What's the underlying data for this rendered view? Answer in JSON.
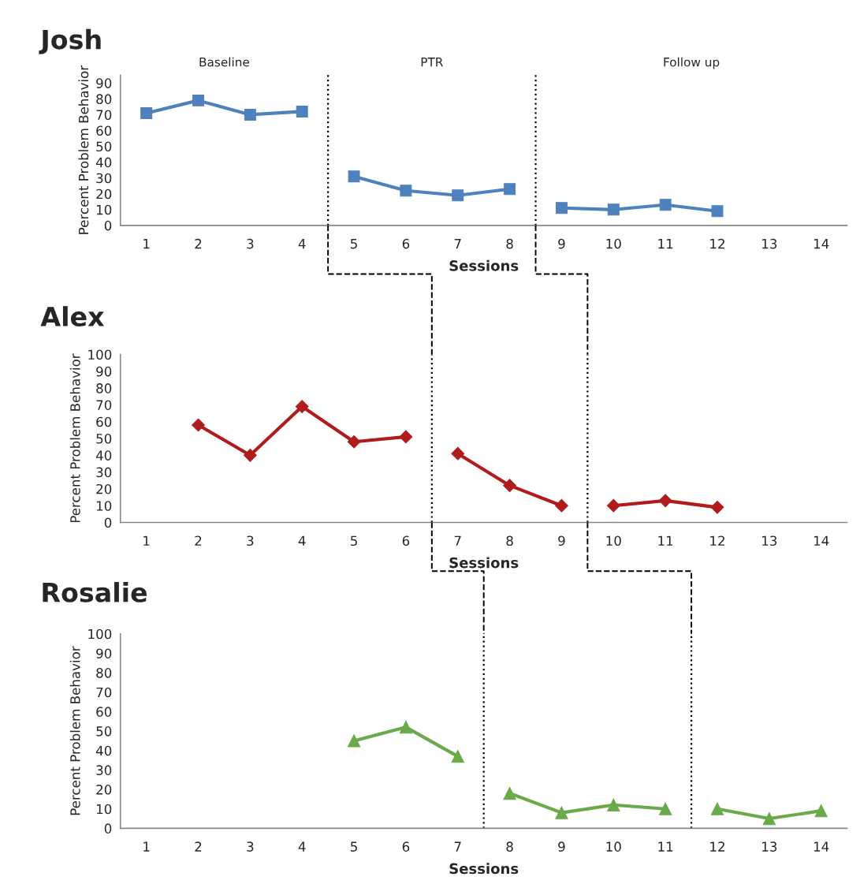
{
  "chart_data": [
    {
      "type": "line",
      "title": "Josh",
      "xlabel": "Sessions",
      "ylabel": "Percent Problem Behavior",
      "marker": "square",
      "grid": false,
      "legend": false,
      "xlim": [
        0.5,
        14.5
      ],
      "xticks": [
        1,
        2,
        3,
        4,
        5,
        6,
        7,
        8,
        9,
        10,
        11,
        12,
        13,
        14
      ],
      "ylim": [
        0,
        95
      ],
      "yticks": [
        0,
        10,
        20,
        30,
        40,
        50,
        60,
        70,
        80,
        90
      ],
      "series": [
        {
          "color": "#4f81bd",
          "x": [
            1,
            2,
            3,
            4
          ],
          "values": [
            71,
            79,
            70,
            72
          ]
        },
        {
          "color": "#4f81bd",
          "x": [
            5,
            6,
            7,
            8
          ],
          "values": [
            31,
            22,
            19,
            23
          ]
        },
        {
          "color": "#4f81bd",
          "x": [
            9,
            10,
            11,
            12
          ],
          "values": [
            11,
            10,
            13,
            9
          ]
        }
      ],
      "ref_lines": [
        {
          "axis": "x",
          "value": 4.5,
          "line_style": "dotted",
          "color": "#000000"
        },
        {
          "axis": "x",
          "value": 8.5,
          "line_style": "dotted",
          "color": "#000000"
        }
      ],
      "annotations": [
        "Baseline",
        "PTR",
        "Follow up"
      ]
    },
    {
      "type": "line",
      "title": "Alex",
      "xlabel": "Sessions",
      "ylabel": "Percent Problem Behavior",
      "marker": "diamond",
      "grid": false,
      "legend": false,
      "xlim": [
        0.5,
        14.5
      ],
      "xticks": [
        1,
        2,
        3,
        4,
        5,
        6,
        7,
        8,
        9,
        10,
        11,
        12,
        13,
        14
      ],
      "ylim": [
        0,
        100
      ],
      "yticks": [
        0,
        10,
        20,
        30,
        40,
        50,
        60,
        70,
        80,
        90,
        100
      ],
      "series": [
        {
          "color": "#b01c1c",
          "x": [
            2,
            3,
            4,
            5,
            6
          ],
          "values": [
            58,
            40,
            69,
            48,
            51
          ]
        },
        {
          "color": "#b01c1c",
          "x": [
            7,
            8,
            9
          ],
          "values": [
            41,
            22,
            10
          ]
        },
        {
          "color": "#b01c1c",
          "x": [
            10,
            11,
            12
          ],
          "values": [
            10,
            13,
            9
          ]
        }
      ],
      "ref_lines": [
        {
          "axis": "x",
          "value": 6.5,
          "line_style": "dotted",
          "color": "#000000"
        },
        {
          "axis": "x",
          "value": 9.5,
          "line_style": "dotted",
          "color": "#000000"
        }
      ]
    },
    {
      "type": "line",
      "title": "Rosalie",
      "xlabel": "Sessions",
      "ylabel": "Percent Problem Behavior",
      "marker": "triangle",
      "grid": false,
      "legend": false,
      "xlim": [
        0.5,
        14.5
      ],
      "xticks": [
        1,
        2,
        3,
        4,
        5,
        6,
        7,
        8,
        9,
        10,
        11,
        12,
        13,
        14
      ],
      "ylim": [
        0,
        100
      ],
      "yticks": [
        0,
        10,
        20,
        30,
        40,
        50,
        60,
        70,
        80,
        90,
        100
      ],
      "series": [
        {
          "color": "#6aaa4b",
          "x": [
            5,
            6,
            7
          ],
          "values": [
            45,
            52,
            37
          ]
        },
        {
          "color": "#6aaa4b",
          "x": [
            8,
            9,
            10,
            11
          ],
          "values": [
            18,
            8,
            12,
            10
          ]
        },
        {
          "color": "#6aaa4b",
          "x": [
            12,
            13,
            14
          ],
          "values": [
            10,
            5,
            9
          ]
        }
      ],
      "ref_lines": [
        {
          "axis": "x",
          "value": 7.5,
          "line_style": "dotted",
          "color": "#000000"
        },
        {
          "axis": "x",
          "value": 11.5,
          "line_style": "dotted",
          "color": "#000000"
        }
      ]
    }
  ]
}
